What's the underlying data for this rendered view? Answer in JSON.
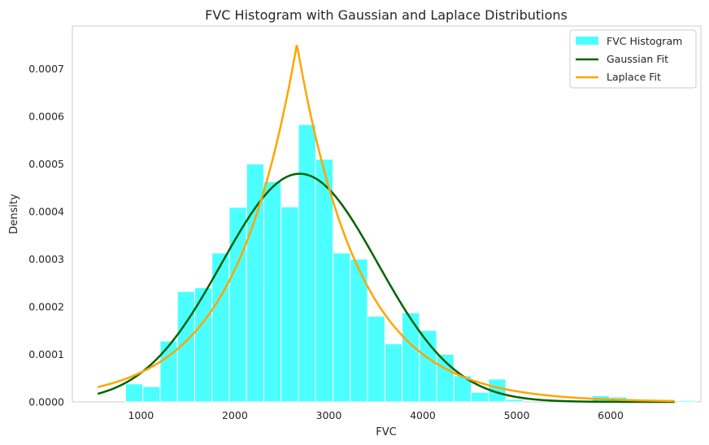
{
  "chart_data": {
    "type": "histogram",
    "title": "FVC Histogram with Gaussian and Laplace Distributions",
    "xlabel": "FVC",
    "ylabel": "Density",
    "xlim": [
      270,
      6960
    ],
    "ylim": [
      0,
      0.00079
    ],
    "xticks": [
      1000,
      2000,
      3000,
      4000,
      5000,
      6000
    ],
    "yticks": [
      0.0,
      0.0001,
      0.0002,
      0.0003,
      0.0004,
      0.0005,
      0.0006,
      0.0007
    ],
    "ytick_labels": [
      "0.0000",
      "0.0001",
      "0.0002",
      "0.0003",
      "0.0004",
      "0.0005",
      "0.0006",
      "0.0007"
    ],
    "grid": false,
    "legend_position": "top-right",
    "histogram": {
      "name": "FVC Histogram",
      "color": "#00ffff",
      "alpha": 0.7,
      "bin_start": 836,
      "bin_width": 184,
      "densities": [
        3.8e-05,
        3.2e-05,
        0.000128,
        0.000232,
        0.00024,
        0.000313,
        0.000409,
        0.0005,
        0.000463,
        0.00041,
        0.000583,
        0.00051,
        0.000313,
        0.0003,
        0.00018,
        0.000122,
        0.000187,
        0.00015,
        0.0001,
        5.5e-05,
        2e-05,
        4.8e-05,
        5e-06,
        0.0,
        0.0,
        0.0,
        0.0,
        1.3e-05,
        1e-05,
        0.0,
        0.0,
        0.0,
        3e-06
      ]
    },
    "series": [
      {
        "name": "Gaussian Fit",
        "type": "line",
        "color": "#006400",
        "mean": 2690,
        "std": 832,
        "x_range": [
          540,
          6680
        ]
      },
      {
        "name": "Laplace Fit",
        "type": "line",
        "color": "#ffa500",
        "loc": 2660,
        "scale": 665,
        "x_range": [
          540,
          6680
        ]
      }
    ]
  }
}
